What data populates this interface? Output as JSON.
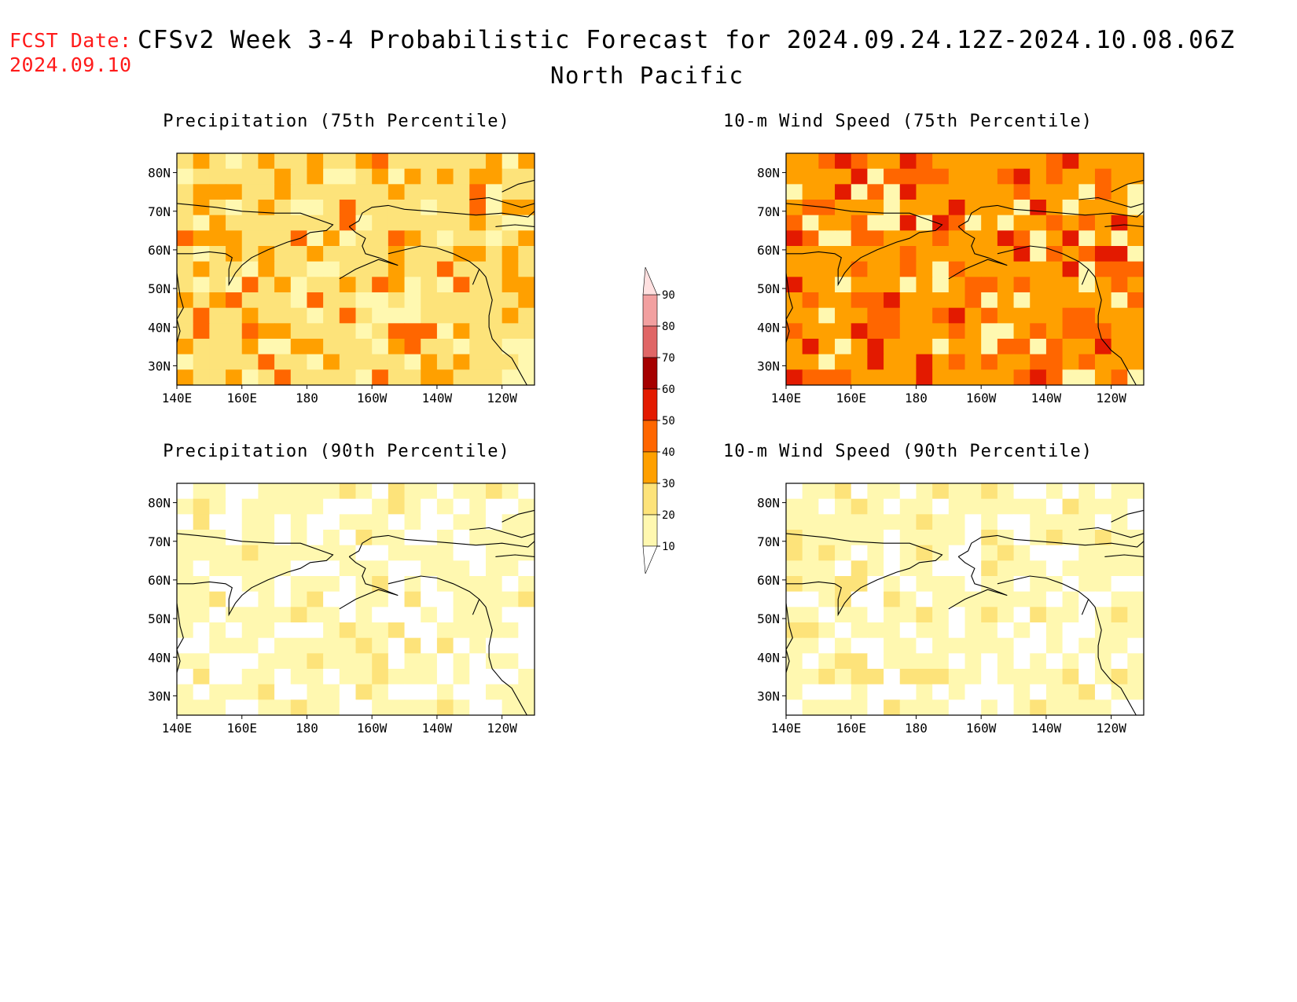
{
  "header": {
    "fcst_label": "FCST Date:",
    "fcst_date": "2024.09.10",
    "title": "CFSv2 Week 3-4 Probabilistic Forecast for 2024.09.24.12Z-2024.10.08.06Z",
    "region": "North Pacific"
  },
  "panels": [
    {
      "id": "precip75",
      "title": "Precipitation (75th Percentile)",
      "dominant_category": "20-30",
      "hot_spots": [
        "30-40",
        "40-50"
      ]
    },
    {
      "id": "wind75",
      "title": "10-m Wind Speed (75th Percentile)",
      "dominant_category": "30-40",
      "hot_spots": [
        "40-50",
        "50-60"
      ]
    },
    {
      "id": "precip90",
      "title": "Precipitation (90th Percentile)",
      "dominant_category": "10-20",
      "hot_spots": [
        "20-30"
      ]
    },
    {
      "id": "wind90",
      "title": "10-m Wind Speed (90th Percentile)",
      "dominant_category": "10-20",
      "hot_spots": [
        "20-30"
      ]
    }
  ],
  "axes": {
    "lat_labels": [
      "80N",
      "70N",
      "60N",
      "50N",
      "40N",
      "30N"
    ],
    "lon_labels": [
      "140E",
      "160E",
      "180",
      "160W",
      "140W",
      "120W"
    ],
    "lat_range": [
      25,
      85
    ],
    "lon_range": [
      140,
      250
    ]
  },
  "colorbar": {
    "labels": [
      "90",
      "80",
      "70",
      "60",
      "50",
      "40",
      "30",
      "20",
      "10"
    ],
    "colors": [
      "#fff8b0",
      "#fde37a",
      "#ffa000",
      "#ff6600",
      "#e31a00",
      "#a50000",
      "#e06666",
      "#f2a0a0",
      "#ffe0e0"
    ]
  }
}
